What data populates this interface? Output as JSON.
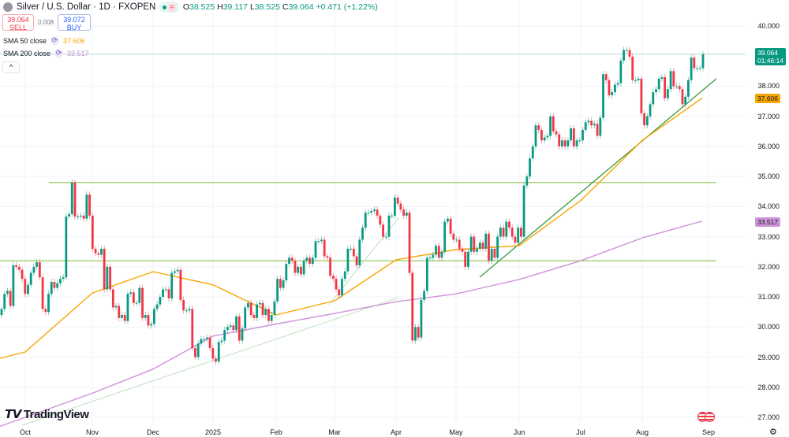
{
  "header": {
    "title": "Silver / U.S. Dollar · 1D · FXOPEN",
    "market_status_icon": "green-dot",
    "wave_icon": "≈",
    "ohlc": {
      "o_label": "O",
      "o": "38.525",
      "h_label": "H",
      "h": "39.117",
      "l_label": "L",
      "l": "38.525",
      "c_label": "C",
      "c": "39.064",
      "change": "+0.471 (+1.22%)"
    }
  },
  "trade": {
    "sell_price": "39.064",
    "sell_label": "SELL",
    "spread": "0.008",
    "buy_price": "39.072",
    "buy_label": "BUY"
  },
  "indicators": [
    {
      "name": "SMA 50 close",
      "value": "37.606",
      "color": "#f7a600"
    },
    {
      "name": "SMA 200 close",
      "value": "33.517",
      "color": "#ce93d8"
    }
  ],
  "collapse_label": "^",
  "price_axis": {
    "ticks": [
      "40.000",
      "38.000",
      "37.000",
      "36.000",
      "35.000",
      "34.000",
      "33.000",
      "32.000",
      "31.000",
      "30.000",
      "29.000",
      "28.000",
      "27.000"
    ],
    "last_price": "39.064",
    "countdown": "01:46:14",
    "sma50_badge": "37.606",
    "sma200_badge": "33.517"
  },
  "time_axis": {
    "ticks": [
      "Oct",
      "Nov",
      "Dec",
      "2025",
      "Feb",
      "Mar",
      "Apr",
      "May",
      "Jun",
      "Jul",
      "Aug",
      "Sep"
    ]
  },
  "brand": "TradingView",
  "colors": {
    "up": "#089981",
    "down": "#f23645",
    "sma50": "#f7a600",
    "sma200": "#ce93d8",
    "level_lines": "#8bc34a",
    "trendline": "#43a047"
  },
  "chart_data": {
    "type": "candlestick",
    "ylim": [
      27,
      40
    ],
    "grid": true,
    "first_open": 30.4,
    "close": [
      30.6,
      31.1,
      31.2,
      30.7,
      32.05,
      32.0,
      31.9,
      31.6,
      31.1,
      31.4,
      31.8,
      32.0,
      32.15,
      31.65,
      30.6,
      30.5,
      31.1,
      31.5,
      31.3,
      31.45,
      31.6,
      31.65,
      33.67,
      33.75,
      34.8,
      33.67,
      33.67,
      33.7,
      33.6,
      34.4,
      33.7,
      32.6,
      32.45,
      32.4,
      32.6,
      31.25,
      32.0,
      31.25,
      30.65,
      30.7,
      30.3,
      30.4,
      30.2,
      31.1,
      31.15,
      30.8,
      30.8,
      31.3,
      30.3,
      30.4,
      30.05,
      30.1,
      30.6,
      30.75,
      31.0,
      31.25,
      31.25,
      30.95,
      31.8,
      31.85,
      31.9,
      30.9,
      30.55,
      30.55,
      30.6,
      29.3,
      29.0,
      29.45,
      29.6,
      29.6,
      29.65,
      29.3,
      28.95,
      28.85,
      29.5,
      29.55,
      29.9,
      30.0,
      30.05,
      29.9,
      30.35,
      29.55,
      29.95,
      30.65,
      30.8,
      30.4,
      30.3,
      30.75,
      30.8,
      30.4,
      30.6,
      30.2,
      30.4,
      30.85,
      31.6,
      31.3,
      31.55,
      32.1,
      32.3,
      32.2,
      31.8,
      32.0,
      31.75,
      32.2,
      32.3,
      32.1,
      32.3,
      32.85,
      32.85,
      32.9,
      32.35,
      32.3,
      31.7,
      31.6,
      31.25,
      31.05,
      31.6,
      31.85,
      32.6,
      32.6,
      32.35,
      32.05,
      32.9,
      33.3,
      33.8,
      33.8,
      33.85,
      33.9,
      33.7,
      33.4,
      33.0,
      33.0,
      33.7,
      33.7,
      34.3,
      34.1,
      33.9,
      33.7,
      33.8,
      31.8,
      29.55,
      30.0,
      29.65,
      30.9,
      31.2,
      32.3,
      32.3,
      32.4,
      32.7,
      32.3,
      32.5,
      33.5,
      33.6,
      33.1,
      32.9,
      32.9,
      32.6,
      32.5,
      32.0,
      32.5,
      33.0,
      32.5,
      32.6,
      32.8,
      32.6,
      33.1,
      32.2,
      32.6,
      32.3,
      33.0,
      33.3,
      33.0,
      33.5,
      33.3,
      33.0,
      32.8,
      33.3,
      33.0,
      34.7,
      35.0,
      35.6,
      36.0,
      36.7,
      36.55,
      36.2,
      36.3,
      36.35,
      37.0,
      36.5,
      36.4,
      36.0,
      36.2,
      36.0,
      36.2,
      36.6,
      36.0,
      36.2,
      36.2,
      36.55,
      36.8,
      36.85,
      36.7,
      36.75,
      36.35,
      36.95,
      38.4,
      38.2,
      37.7,
      37.8,
      38.05,
      38.1,
      38.85,
      39.2,
      39.2,
      38.98,
      38.2,
      38.2,
      38.25,
      37.1,
      36.7,
      37.0,
      37.4,
      37.8,
      37.9,
      38.25,
      38.3,
      37.6,
      37.9,
      38.5,
      38.0,
      38.0,
      37.9,
      37.4,
      37.65,
      38.2,
      38.95,
      38.6,
      38.6,
      38.6,
      39.064
    ],
    "sma50": [
      {
        "at": "start",
        "value": 28.96
      },
      {
        "at": "Oct",
        "value": 29.17
      },
      {
        "at": "Nov",
        "value": 31.13
      },
      {
        "at": "Dec",
        "value": 31.84
      },
      {
        "at": "2025",
        "value": 31.4
      },
      {
        "at": "Feb",
        "value": 30.4
      },
      {
        "at": "Mar",
        "value": 30.87
      },
      {
        "at": "Apr",
        "value": 32.23
      },
      {
        "at": "May",
        "value": 32.57
      },
      {
        "at": "Jun",
        "value": 32.7
      },
      {
        "at": "Jul",
        "value": 34.2
      },
      {
        "at": "Aug",
        "value": 36.2
      },
      {
        "at": "end",
        "value": 37.606
      }
    ],
    "sma200": [
      {
        "at": "start",
        "value": 26.7
      },
      {
        "at": "Oct",
        "value": 27.0
      },
      {
        "at": "Nov",
        "value": 27.8
      },
      {
        "at": "Dec",
        "value": 28.6
      },
      {
        "at": "2025",
        "value": 29.7
      },
      {
        "at": "Feb",
        "value": 30.1
      },
      {
        "at": "Mar",
        "value": 30.45
      },
      {
        "at": "Apr",
        "value": 30.84
      },
      {
        "at": "May",
        "value": 31.1
      },
      {
        "at": "Jun",
        "value": 31.58
      },
      {
        "at": "Jul",
        "value": 32.2
      },
      {
        "at": "Aug",
        "value": 32.96
      },
      {
        "at": "end",
        "value": 33.517
      }
    ],
    "horizontal_levels": [
      34.8,
      32.2
    ]
  }
}
